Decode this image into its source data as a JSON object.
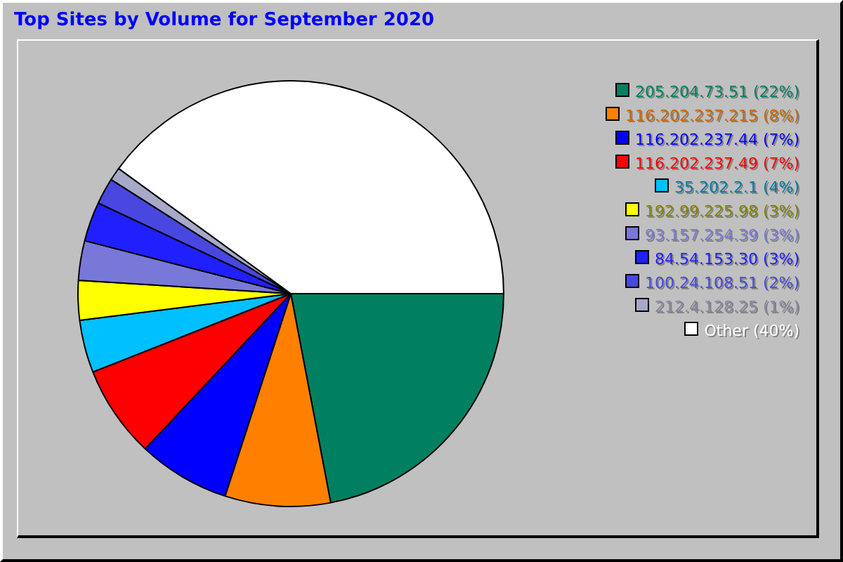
{
  "chart_data": {
    "type": "pie",
    "title": "Top Sites by Volume for September 2020",
    "categories": [
      "205.204.73.51 (22%)",
      "116.202.237.215 (8%)",
      "116.202.237.44 (7%)",
      "116.202.237.49 (7%)",
      "35.202.2.1 (4%)",
      "192.99.225.98 (3%)",
      "93.157.254.39 (3%)",
      "84.54.153.30 (3%)",
      "100.24.108.51 (2%)",
      "212.4.128.25 (1%)",
      "Other (40%)"
    ],
    "values": [
      22,
      8,
      7,
      7,
      4,
      3,
      3,
      3,
      2,
      1,
      40
    ],
    "colors": [
      "#008060",
      "#ff8000",
      "#0000ff",
      "#ff0000",
      "#00c0ff",
      "#ffff00",
      "#7878d8",
      "#2020ff",
      "#4848e0",
      "#a8a8c8",
      "#ffffff"
    ],
    "legend": "right"
  }
}
